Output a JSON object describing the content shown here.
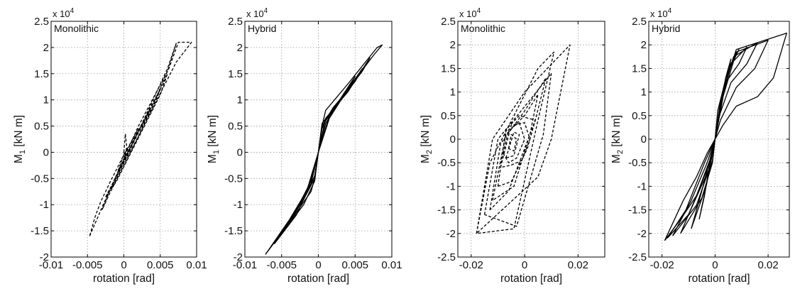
{
  "chart_data": [
    {
      "type": "line",
      "panel_label": "Monolithic",
      "multiplier": "x 10",
      "multiplier_exp": "4",
      "xlabel": "rotation [rad]",
      "ylabel_main": "M",
      "ylabel_sub": "1",
      "ylabel_unit": " [kN m]",
      "xlim": [
        -0.01,
        0.01
      ],
      "ylim": [
        -2,
        2.5
      ],
      "xticks": [
        -0.01,
        -0.005,
        0,
        0.005,
        0.01
      ],
      "xtick_labels": [
        "-0.01",
        "-0.005",
        "0",
        "0.005",
        "0.01"
      ],
      "yticks": [
        -2,
        -1.5,
        -1,
        -0.5,
        0,
        0.5,
        1,
        1.5,
        2,
        2.5
      ],
      "ytick_labels": [
        "-2",
        "-1.5",
        "-1",
        "-0.5",
        "0",
        "0.5",
        "1",
        "1.5",
        "2",
        "2.5"
      ],
      "grid": true,
      "line_style": "dashed",
      "series": [
        {
          "x": [
            -0.0047,
            -0.003,
            0.002,
            0.0062,
            0.0075,
            0.0093,
            0.0072,
            0.004,
            0.0,
            -0.002,
            -0.0032,
            -0.004,
            -0.0047
          ],
          "y": [
            -1.6,
            -1.05,
            0.5,
            1.6,
            2.1,
            2.1,
            1.72,
            0.85,
            -0.05,
            -0.6,
            -0.95,
            -1.25,
            -1.6
          ]
        },
        {
          "x": [
            -0.003,
            -0.002,
            0.0,
            0.002,
            0.004,
            0.006,
            0.0072,
            0.006,
            0.004,
            0.002,
            0.0,
            -0.002,
            -0.003
          ],
          "y": [
            -1.1,
            -0.75,
            -0.2,
            0.4,
            1.0,
            1.6,
            2.08,
            1.55,
            0.9,
            0.3,
            -0.25,
            -0.8,
            -1.1
          ]
        },
        {
          "x": [
            -0.0025,
            -0.001,
            0.001,
            0.003,
            0.005,
            0.006,
            0.005,
            0.003,
            0.001,
            -0.001,
            -0.0025
          ],
          "y": [
            -0.85,
            -0.45,
            0.1,
            0.65,
            1.2,
            1.5,
            1.1,
            0.55,
            0.0,
            -0.55,
            -0.85
          ]
        },
        {
          "x": [
            -0.0018,
            0.0,
            0.002,
            0.004,
            0.005,
            0.004,
            0.002,
            0.0,
            -0.0018
          ],
          "y": [
            -0.7,
            -0.15,
            0.4,
            0.95,
            1.2,
            0.85,
            0.3,
            -0.25,
            -0.7
          ]
        },
        {
          "x": [
            -0.0012,
            0.0,
            0.002,
            0.0035,
            0.002,
            0.0,
            -0.0012
          ],
          "y": [
            -0.5,
            -0.15,
            0.4,
            0.8,
            0.3,
            -0.2,
            -0.5
          ]
        },
        {
          "x": [
            -0.0008,
            0.0,
            0.001,
            0.002,
            0.001,
            0.0,
            -0.0008
          ],
          "y": [
            -0.35,
            -0.05,
            0.2,
            0.45,
            0.1,
            -0.15,
            -0.35
          ]
        },
        {
          "x": [
            0.0,
            0.0002,
            0.0004,
            0.0001,
            0.0
          ],
          "y": [
            0.0,
            0.35,
            0.1,
            -0.1,
            0.0
          ]
        }
      ]
    },
    {
      "type": "line",
      "panel_label": "Hybrid",
      "multiplier": "x 10",
      "multiplier_exp": "4",
      "xlabel": "rotation [rad]",
      "ylabel_main": "M",
      "ylabel_sub": "1",
      "ylabel_unit": " [kN m]",
      "xlim": [
        -0.01,
        0.01
      ],
      "ylim": [
        -2,
        2.5
      ],
      "xticks": [
        -0.01,
        -0.005,
        0,
        0.005,
        0.01
      ],
      "xtick_labels": [
        "-0.01",
        "-0.005",
        "0",
        "0.005",
        "0.01"
      ],
      "yticks": [
        -2,
        -1.5,
        -1,
        -0.5,
        0,
        0.5,
        1,
        1.5,
        2,
        2.5
      ],
      "ytick_labels": [
        "-2",
        "-1.5",
        "-1",
        "-0.5",
        "0",
        "0.5",
        "1",
        "1.5",
        "2",
        "2.5"
      ],
      "grid": true,
      "line_style": "solid",
      "series": [
        {
          "x": [
            -0.0072,
            -0.004,
            -0.001,
            -0.0005,
            0.0,
            0.0005,
            0.001,
            0.004,
            0.008,
            0.0087,
            0.0075,
            0.004,
            0.001,
            0.0005,
            0.0,
            -0.0005,
            -0.001,
            -0.004,
            -0.0072
          ],
          "y": [
            -1.95,
            -1.3,
            -0.6,
            -0.45,
            0.0,
            0.5,
            0.8,
            1.3,
            2.0,
            2.05,
            1.85,
            1.2,
            0.6,
            0.45,
            0.0,
            -0.5,
            -0.75,
            -1.35,
            -1.95
          ]
        },
        {
          "x": [
            -0.006,
            -0.003,
            -0.001,
            0.0,
            0.001,
            0.004,
            0.007,
            0.006,
            0.003,
            0.001,
            0.0,
            -0.001,
            -0.003,
            -0.006
          ],
          "y": [
            -1.75,
            -1.1,
            -0.55,
            0.0,
            0.65,
            1.15,
            1.8,
            1.55,
            1.0,
            0.55,
            0.0,
            -0.6,
            -1.2,
            -1.75
          ]
        },
        {
          "x": [
            -0.005,
            -0.002,
            -0.0005,
            0.0,
            0.0005,
            0.003,
            0.006,
            0.005,
            0.002,
            0.0005,
            0.0,
            -0.0005,
            -0.002,
            -0.005
          ],
          "y": [
            -1.55,
            -0.9,
            -0.5,
            0.0,
            0.55,
            1.0,
            1.6,
            1.35,
            0.85,
            0.5,
            0.0,
            -0.55,
            -1.0,
            -1.55
          ]
        },
        {
          "x": [
            -0.004,
            -0.0015,
            0.0,
            0.0015,
            0.005,
            0.004,
            0.0015,
            0.0,
            -0.0015,
            -0.004
          ],
          "y": [
            -1.35,
            -0.75,
            0.0,
            0.7,
            1.45,
            1.2,
            0.65,
            0.0,
            -0.7,
            -1.35
          ]
        }
      ]
    },
    {
      "type": "line",
      "panel_label": "Monolithic",
      "multiplier": "x 10",
      "multiplier_exp": "4",
      "xlabel": "rotation [rad]",
      "ylabel_main": "M",
      "ylabel_sub": "2",
      "ylabel_unit": " [kN m]",
      "xlim": [
        -0.025,
        0.03
      ],
      "ylim": [
        -2.5,
        2.5
      ],
      "xticks": [
        -0.02,
        0,
        0.02
      ],
      "xtick_labels": [
        "-0.02",
        "0",
        "0.02"
      ],
      "yticks": [
        -2.5,
        -2,
        -1.5,
        -1,
        -0.5,
        0,
        0.5,
        1,
        1.5,
        2,
        2.5
      ],
      "ytick_labels": [
        "-2.5",
        "-2",
        "-1.5",
        "-1",
        "-0.5",
        "0",
        "0.5",
        "1",
        "1.5",
        "2",
        "2.5"
      ],
      "grid": true,
      "line_style": "dashed",
      "series": [
        {
          "x": [
            -0.018,
            -0.012,
            0.0,
            0.017,
            0.01,
            0.005,
            -0.018
          ],
          "y": [
            -2.0,
            0.0,
            1.0,
            2.0,
            0.0,
            -0.8,
            -2.0
          ]
        },
        {
          "x": [
            -0.018,
            -0.013,
            0.005,
            0.011,
            0.005,
            -0.004,
            -0.018
          ],
          "y": [
            -2.0,
            -0.5,
            1.5,
            1.85,
            0.4,
            -1.9,
            -2.0
          ]
        },
        {
          "x": [
            -0.015,
            -0.01,
            0.003,
            0.01,
            0.007,
            -0.003,
            -0.015
          ],
          "y": [
            -1.6,
            0.0,
            0.9,
            1.4,
            0.1,
            -1.85,
            -1.6
          ]
        },
        {
          "x": [
            -0.013,
            -0.009,
            0.0,
            0.008,
            0.004,
            -0.006,
            -0.013
          ],
          "y": [
            -1.5,
            -0.1,
            0.6,
            1.3,
            0.4,
            -1.1,
            -1.5
          ]
        },
        {
          "x": [
            -0.012,
            -0.007,
            0.0,
            0.005,
            0.002,
            -0.004,
            -0.012
          ],
          "y": [
            -1.3,
            0.1,
            0.5,
            0.95,
            0.1,
            -1.0,
            -1.3
          ]
        },
        {
          "x": [
            -0.01,
            -0.007,
            -0.002,
            0.004,
            0.001,
            -0.005,
            -0.01
          ],
          "y": [
            -1.0,
            0.2,
            0.5,
            0.4,
            -0.2,
            -0.9,
            -1.0
          ]
        },
        {
          "x": [
            -0.009,
            -0.005,
            0.0,
            0.002,
            -0.001,
            -0.005,
            -0.009
          ],
          "y": [
            -0.6,
            0.3,
            0.35,
            0.0,
            -0.45,
            -0.55,
            -0.6
          ]
        },
        {
          "x": [
            -0.008,
            -0.006,
            -0.002,
            0.0,
            -0.003,
            -0.006,
            -0.008
          ],
          "y": [
            -0.3,
            0.2,
            0.35,
            0.0,
            -0.4,
            -0.5,
            -0.3
          ]
        },
        {
          "x": [
            -0.007,
            -0.004,
            -0.002,
            -0.004,
            -0.007
          ],
          "y": [
            -0.4,
            0.15,
            0.1,
            -0.35,
            -0.4
          ]
        },
        {
          "x": [
            -0.006,
            -0.005,
            -0.003,
            -0.004,
            -0.006
          ],
          "y": [
            -0.2,
            0.1,
            0.0,
            -0.25,
            -0.2
          ]
        }
      ]
    },
    {
      "type": "line",
      "panel_label": "Hybrid",
      "multiplier": "x 10",
      "multiplier_exp": "4",
      "xlabel": "rotation [rad]",
      "ylabel_main": "M",
      "ylabel_sub": "2",
      "ylabel_unit": " [kN m]",
      "xlim": [
        -0.025,
        0.028
      ],
      "ylim": [
        -2.5,
        2.5
      ],
      "xticks": [
        -0.02,
        0,
        0.02
      ],
      "xtick_labels": [
        "-0.02",
        "0",
        "0.02"
      ],
      "yticks": [
        -2.5,
        -2,
        -1.5,
        -1,
        -0.5,
        0,
        0.5,
        1,
        1.5,
        2,
        2.5
      ],
      "ytick_labels": [
        "-2.5",
        "-2",
        "-1.5",
        "-1",
        "-0.5",
        "0",
        "0.5",
        "1",
        "1.5",
        "2",
        "2.5"
      ],
      "grid": true,
      "line_style": "solid",
      "series": [
        {
          "x": [
            -0.019,
            -0.013,
            -0.007,
            -0.002,
            0.0,
            0.002,
            0.004,
            0.008,
            0.027,
            0.022,
            0.016,
            0.008,
            0.003,
            0.0,
            -0.003,
            -0.007,
            -0.012,
            -0.019
          ],
          "y": [
            -2.15,
            -1.7,
            -1.2,
            -0.5,
            0.0,
            0.6,
            1.2,
            1.9,
            2.25,
            1.3,
            0.9,
            0.7,
            0.3,
            0.0,
            -0.3,
            -0.8,
            -1.3,
            -2.15
          ]
        },
        {
          "x": [
            -0.018,
            -0.01,
            -0.002,
            0.0,
            0.003,
            0.008,
            0.02,
            0.015,
            0.008,
            0.002,
            0.0,
            -0.004,
            -0.011,
            -0.018
          ],
          "y": [
            -2.1,
            -1.6,
            -0.6,
            0.0,
            0.9,
            1.85,
            2.1,
            1.5,
            1.1,
            0.4,
            0.0,
            -0.5,
            -1.5,
            -2.1
          ]
        },
        {
          "x": [
            -0.016,
            -0.007,
            -0.002,
            0.0,
            0.002,
            0.007,
            0.016,
            0.012,
            0.006,
            0.001,
            0.0,
            -0.003,
            -0.009,
            -0.016
          ],
          "y": [
            -2.05,
            -1.4,
            -0.6,
            0.0,
            0.8,
            1.75,
            2.05,
            1.6,
            1.2,
            0.4,
            0.0,
            -0.5,
            -1.3,
            -2.05
          ]
        },
        {
          "x": [
            -0.013,
            -0.005,
            -0.001,
            0.0,
            0.002,
            0.006,
            0.012,
            0.009,
            0.004,
            0.001,
            0.0,
            -0.002,
            -0.007,
            -0.013
          ],
          "y": [
            -2.0,
            -1.25,
            -0.5,
            0.0,
            0.7,
            1.6,
            1.95,
            1.6,
            1.2,
            0.4,
            0.0,
            -0.45,
            -1.2,
            -2.0
          ]
        },
        {
          "x": [
            -0.009,
            -0.004,
            -0.001,
            0.0,
            0.001,
            0.005,
            0.009,
            0.006,
            0.003,
            0.0,
            -0.002,
            -0.005,
            -0.009
          ],
          "y": [
            -1.9,
            -1.1,
            -0.45,
            0.0,
            0.6,
            1.5,
            1.9,
            1.55,
            1.0,
            0.0,
            -0.45,
            -1.1,
            -1.9
          ]
        },
        {
          "x": [
            -0.006,
            -0.003,
            0.0,
            0.003,
            0.006,
            0.004,
            0.002,
            0.0,
            -0.002,
            -0.004,
            -0.006
          ],
          "y": [
            -1.7,
            -0.9,
            0.0,
            0.9,
            1.7,
            1.3,
            0.7,
            0.0,
            -0.5,
            -1.2,
            -1.7
          ]
        }
      ]
    }
  ]
}
